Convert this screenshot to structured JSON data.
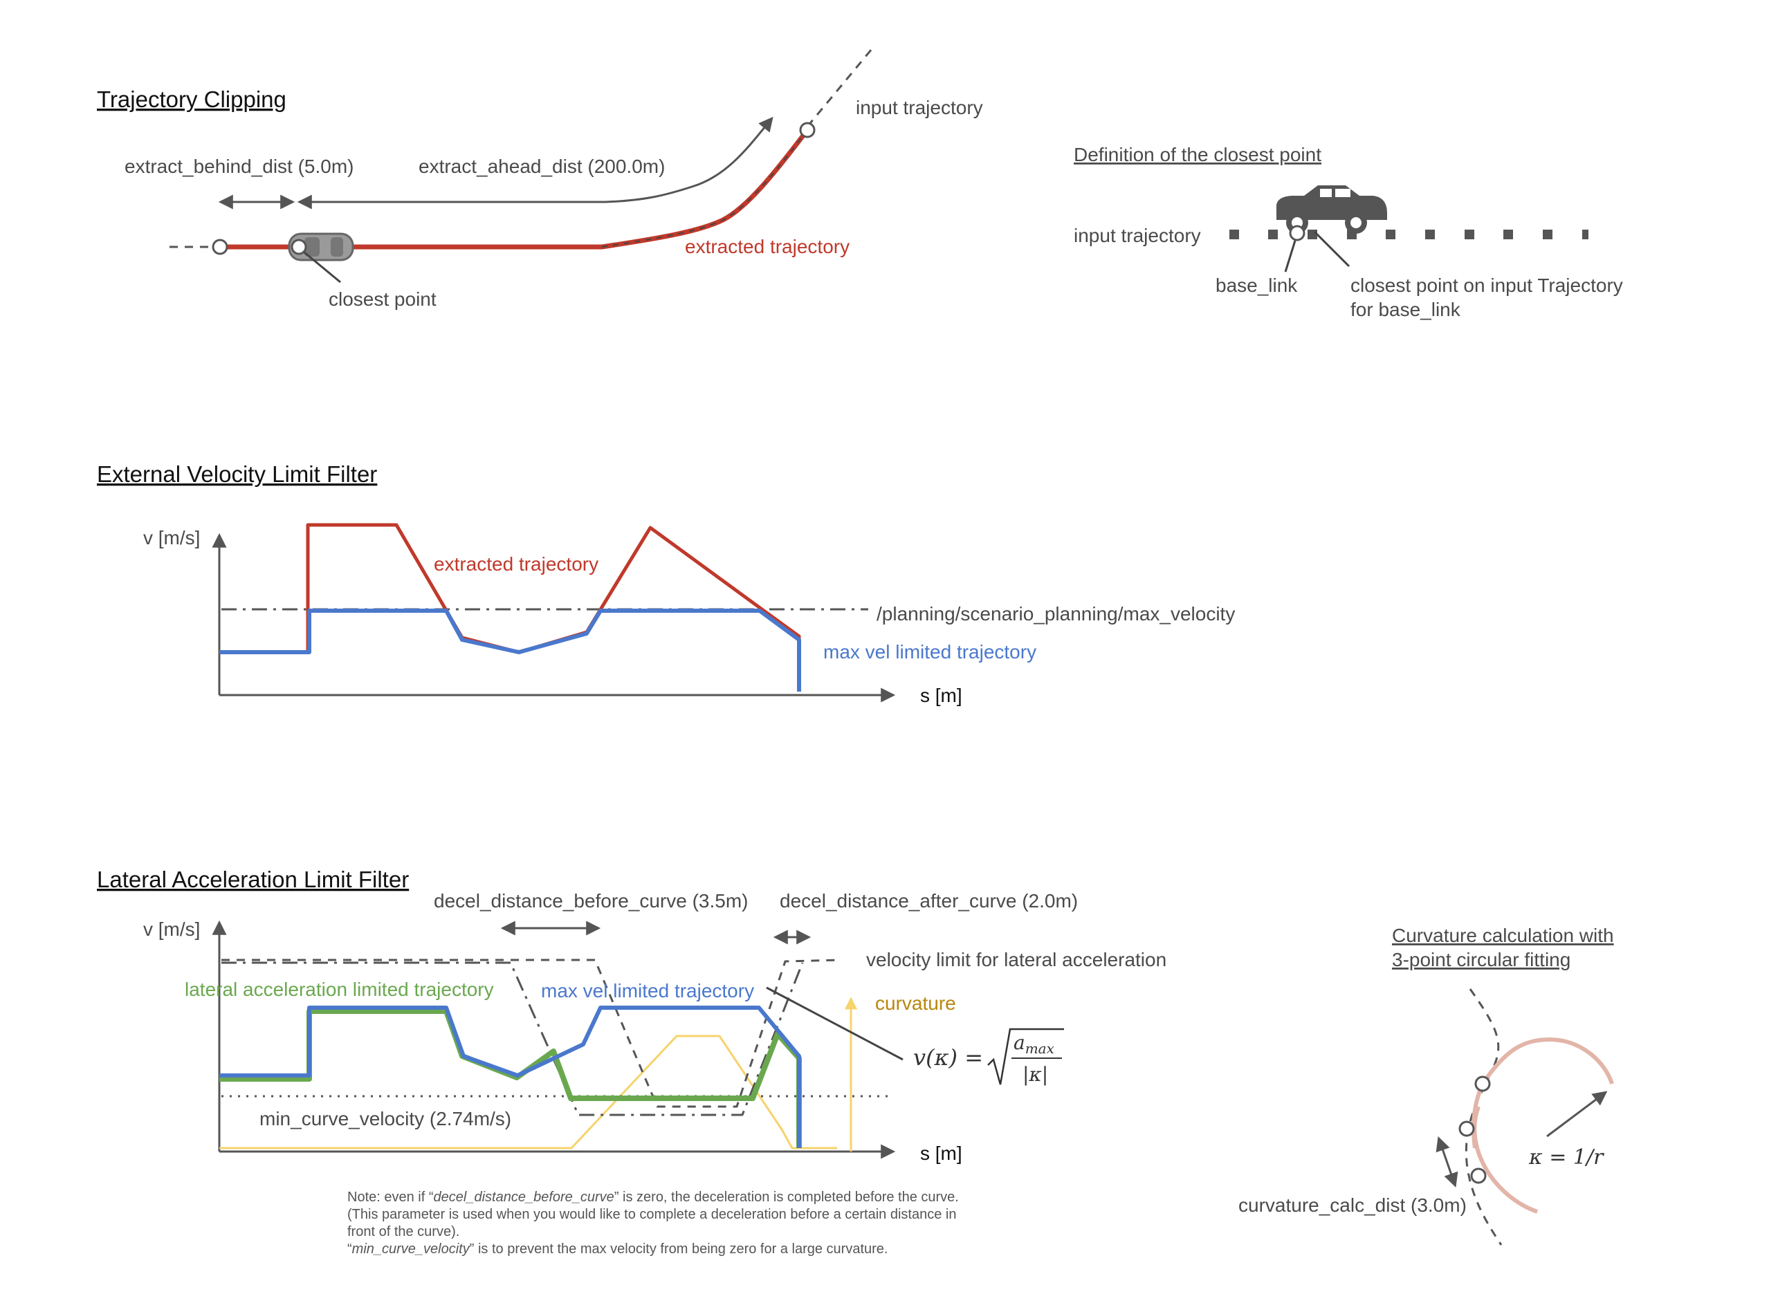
{
  "colors": {
    "red": "#c0392b",
    "blue": "#4a78cc",
    "green": "#6aa84f",
    "yellow": "#f6d36b",
    "curvature_text": "#b8860b",
    "gray": "#555555",
    "arc": "#e2b5a8"
  },
  "clipping": {
    "title": "Trajectory Clipping",
    "behind_label": "extract_behind_dist (5.0m)",
    "ahead_label": "extract_ahead_dist (200.0m)",
    "input_label": "input trajectory",
    "extracted_label": "extracted trajectory",
    "closest_label": "closest point"
  },
  "closest_def": {
    "title": "Definition of the closest point",
    "input_label": "input trajectory",
    "base_link_label": "base_link",
    "closest_label_1": "closest point on input Trajectory",
    "closest_label_2": "for base_link"
  },
  "velocity_filter": {
    "title": "External Velocity Limit Filter",
    "ylabel": "v [m/s]",
    "xlabel": "s [m]",
    "extracted_label": "extracted trajectory",
    "max_velocity_label": "/planning/scenario_planning/max_velocity",
    "limited_label": "max vel limited trajectory"
  },
  "lateral_filter": {
    "title": "Lateral Acceleration Limit Filter",
    "ylabel": "v [m/s]",
    "xlabel": "s [m]",
    "decel_before_label": "decel_distance_before_curve (3.5m)",
    "decel_after_label": "decel_distance_after_curve (2.0m)",
    "limit_label": "velocity limit for lateral acceleration",
    "green_label": "lateral acceleration limited trajectory",
    "blue_label": "max vel limited trajectory",
    "curvature_label": "curvature",
    "min_curve_label": "min_curve_velocity (2.74m/s)",
    "formula_lhs": "v(κ) =",
    "formula_num": "a",
    "formula_num_sub": "max",
    "formula_den": "|κ|"
  },
  "note": {
    "line1_a": "Note:  even if “",
    "line1_em": "decel_distance_before_curve",
    "line1_b": "” is zero, the deceleration is completed before the curve.",
    "line2": "(This parameter is used when you would like to complete a deceleration before a certain distance in",
    "line3": "front of the curve).",
    "line4_a": "“",
    "line4_em": "min_curve_velocity",
    "line4_b": "” is to prevent the max velocity from being zero for a large curvature."
  },
  "curvature_calc": {
    "title_1": "Curvature calculation with",
    "title_2": "3-point circular fitting",
    "dist_label": "curvature_calc_dist (3.0m)",
    "kappa_label": "κ = 1/r"
  }
}
